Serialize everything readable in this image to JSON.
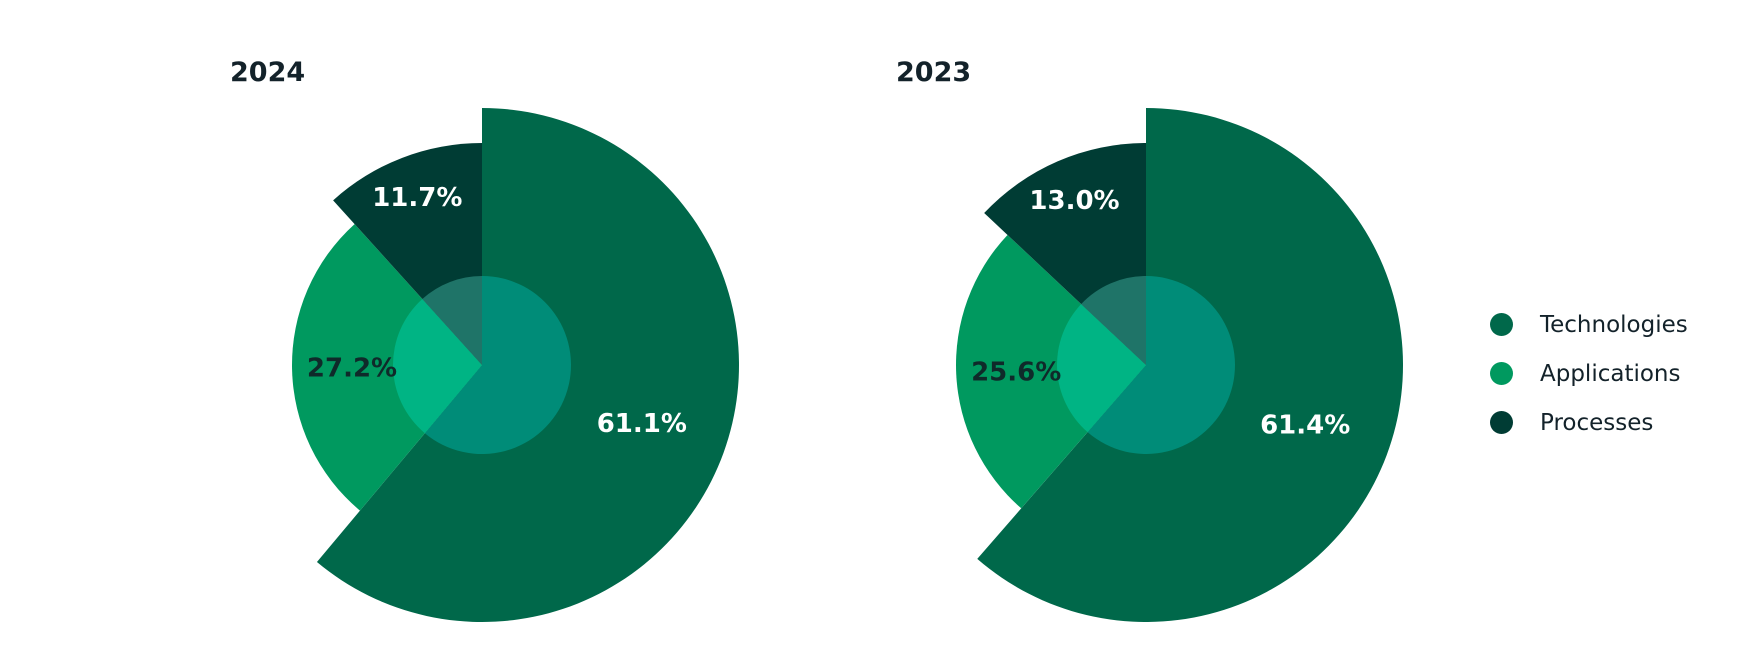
{
  "chart_data": [
    {
      "type": "pie",
      "title": "2024",
      "slices": [
        {
          "category": "Technologies",
          "value": 61.1,
          "label": "61.1%"
        },
        {
          "category": "Applications",
          "value": 27.2,
          "label": "27.2%"
        },
        {
          "category": "Processes",
          "value": 11.7,
          "label": "11.7%"
        }
      ]
    },
    {
      "type": "pie",
      "title": "2023",
      "slices": [
        {
          "category": "Technologies",
          "value": 61.4,
          "label": "61.4%"
        },
        {
          "category": "Applications",
          "value": 25.6,
          "label": "25.6%"
        },
        {
          "category": "Processes",
          "value": 13.0,
          "label": "13.0%"
        }
      ]
    }
  ],
  "legend": {
    "placement": "right",
    "items": [
      {
        "label": "Technologies",
        "color": "#00684a"
      },
      {
        "label": "Applications",
        "color": "#00995f"
      },
      {
        "label": "Processes",
        "color": "#003c34"
      }
    ]
  },
  "colors": {
    "Technologies": "#00684a",
    "Applications": "#00995f",
    "Processes": "#003c34",
    "label_light": "#ffffff",
    "label_dark": "#0f2a2a",
    "inner_Technologies": "#008c78",
    "inner_Applications": "#00b484",
    "inner_Processes": "#1f7468"
  }
}
